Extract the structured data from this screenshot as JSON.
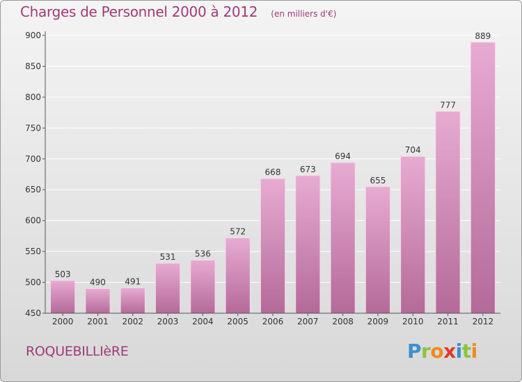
{
  "header": {
    "title": "Charges de Personnel 2000 à 2012",
    "subtitle": "(en milliers d'€)"
  },
  "footer": {
    "commune": "ROQUEBILLIèRE",
    "logo": {
      "letters": [
        "P",
        "r",
        "o",
        "x",
        "i",
        "t",
        "i"
      ],
      "colors": [
        "#3a8fd0",
        "#8ac43f",
        "#f08a1c",
        "#e03a2a",
        "#3a8fd0",
        "#8ac43f",
        "#f08a1c"
      ]
    }
  },
  "colors": {
    "bar_top": "#e7abd2",
    "bar_bottom": "#b46a99",
    "text": "#a03a7a",
    "grid": "#ffffff"
  },
  "chart_data": {
    "type": "bar",
    "categories": [
      "2000",
      "2001",
      "2002",
      "2003",
      "2004",
      "2005",
      "2006",
      "2007",
      "2008",
      "2009",
      "2010",
      "2011",
      "2012"
    ],
    "values": [
      503,
      490,
      491,
      531,
      536,
      572,
      668,
      673,
      694,
      655,
      704,
      777,
      889
    ],
    "ylim": [
      450,
      900
    ],
    "yticks": [
      450,
      500,
      550,
      600,
      650,
      700,
      750,
      800,
      850,
      900
    ],
    "data_labels": [
      "503",
      "490",
      "491",
      "531",
      "536",
      "572",
      "668",
      "673",
      "694",
      "655",
      "704",
      "777",
      "889"
    ],
    "grid": true
  }
}
